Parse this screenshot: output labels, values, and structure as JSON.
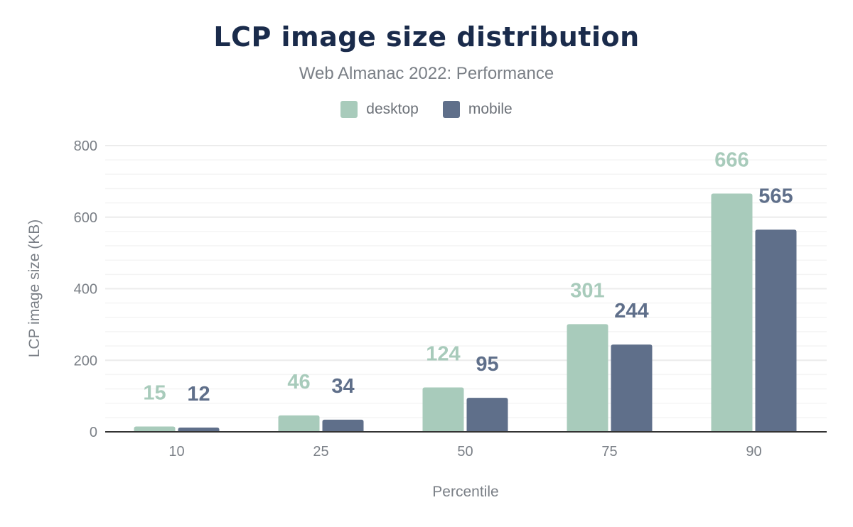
{
  "chart_data": {
    "type": "bar",
    "title": "LCP image size distribution",
    "subtitle": "Web Almanac 2022: Performance",
    "xlabel": "Percentile",
    "ylabel": "LCP image size (KB)",
    "categories": [
      "10",
      "25",
      "50",
      "75",
      "90"
    ],
    "series": [
      {
        "name": "desktop",
        "color": "#a8cbbb",
        "values": [
          15,
          46,
          124,
          301,
          666
        ]
      },
      {
        "name": "mobile",
        "color": "#5f6f8a",
        "values": [
          12,
          34,
          95,
          244,
          565
        ]
      }
    ],
    "ylim": [
      0,
      800
    ],
    "yticks": [
      0,
      200,
      400,
      600,
      800
    ],
    "grid": true,
    "legend": "top-center",
    "data_labels": true
  }
}
